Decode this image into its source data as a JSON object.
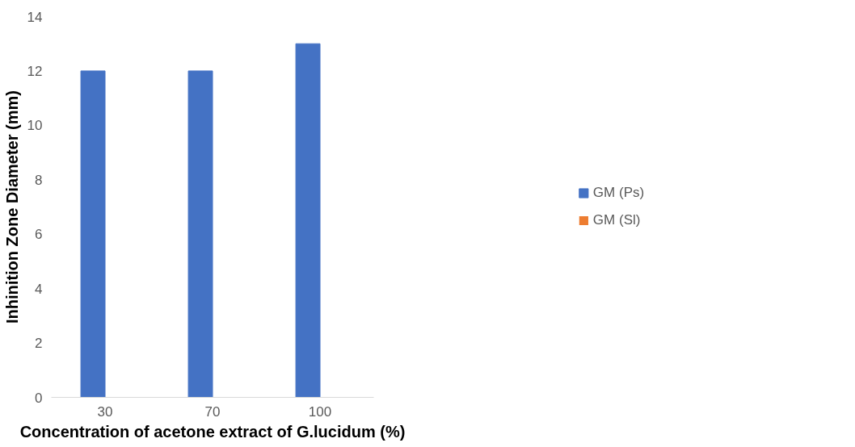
{
  "chart_data": {
    "type": "bar",
    "xlabel": "Concentration of acetone extract of G.lucidum (%)",
    "ylabel": "Inhinition Zone Diameter (mm)",
    "categories": [
      "30",
      "70",
      "100"
    ],
    "series": [
      {
        "name": "GM (Ps)",
        "color": "#4472c4",
        "values": [
          12,
          12,
          13
        ]
      },
      {
        "name": "GM (Sl)",
        "color": "#ed7d31",
        "values": [
          0,
          0,
          0
        ]
      }
    ],
    "ylim": [
      0,
      14
    ],
    "yticks": [
      0,
      2,
      4,
      6,
      8,
      10,
      12,
      14
    ],
    "grid": false,
    "legend": "right"
  }
}
